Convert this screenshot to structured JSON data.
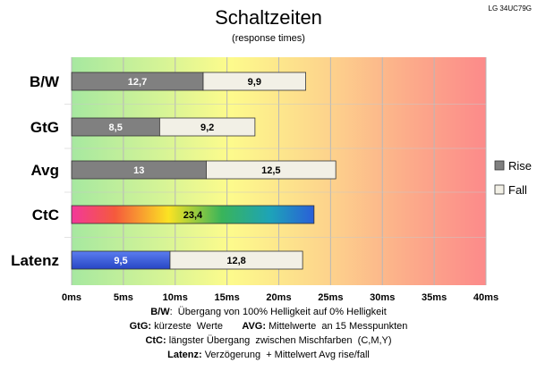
{
  "chart_data": {
    "type": "bar",
    "orientation": "horizontal",
    "stacked": true,
    "title": "Schaltzeiten",
    "subtitle": "(response times)",
    "monitor": "LG 34UC79G",
    "categories": [
      "B/W",
      "GtG",
      "Avg",
      "CtC",
      "Latenz"
    ],
    "series": [
      {
        "name": "Rise",
        "values": [
          12.7,
          8.5,
          13,
          null,
          null
        ]
      },
      {
        "name": "Fall",
        "values": [
          9.9,
          9.2,
          12.5,
          null,
          12.8
        ]
      }
    ],
    "single_bars": [
      {
        "category": "CtC",
        "value": 23.4,
        "label": "23,4",
        "style": "rainbow"
      },
      {
        "category": "Latenz",
        "value": 9.5,
        "label": "9,5",
        "style": "blue"
      }
    ],
    "value_labels": {
      "Rise": [
        "12,7",
        "8,5",
        "13",
        "",
        ""
      ],
      "Fall": [
        "9,9",
        "9,2",
        "12,5",
        "",
        "12,8"
      ]
    },
    "xlim": [
      0,
      40
    ],
    "xticks": [
      0,
      5,
      10,
      15,
      20,
      25,
      30,
      35,
      40
    ],
    "xtick_labels": [
      "0ms",
      "5ms",
      "10ms",
      "15ms",
      "20ms",
      "25ms",
      "30ms",
      "35ms",
      "40ms"
    ],
    "grid": true,
    "legend_position": "right",
    "background": "gradient green-yellow-orange-red",
    "colors": {
      "rise": "#808080",
      "fall": "#f2f0e6",
      "latenz": "#3a5ed8",
      "grid": "#b8b8b8",
      "bg_start": "#a6e8a0",
      "bg_mid": "#fdfb8c",
      "bg_orange": "#fdc88c",
      "bg_end": "#fc8a8a"
    }
  },
  "notes": [
    {
      "label": "B/W",
      "text": ":  Übergang von 100% Helligkeit auf 0% Helligkeit"
    },
    {
      "label": "GtG:",
      "text": " kürzeste  Werte       ",
      "label2": "AVG:",
      "text2": " Mittelwerte  an 15 Messpunkten"
    },
    {
      "label": "CtC:",
      "text": " längster Übergang  zwischen Mischfarben  (C,M,Y)"
    },
    {
      "label": "Latenz:",
      "text": " Verzögerung  + Mittelwert Avg rise/fall"
    }
  ]
}
